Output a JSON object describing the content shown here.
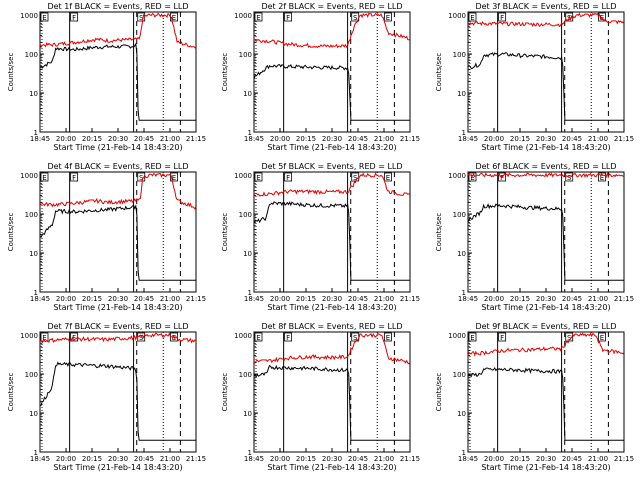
{
  "figure": {
    "xlabel": "Start Time (21-Feb-14 18:43:20)",
    "ylabel": "Counts/sec",
    "x_ticks": [
      "18:45",
      "20:00",
      "20:15",
      "20:30",
      "20:45",
      "21:00",
      "21:15"
    ],
    "y_ticks": [
      "1",
      "10",
      "100",
      "1000"
    ],
    "colors": {
      "events": "#000000",
      "lld": "#e00000",
      "axes": "#000000",
      "background": "#ffffff"
    }
  },
  "chart_data": [
    {
      "type": "line",
      "title": "Det 1f BLACK = Events, RED = LLD",
      "xlabel": "Start Time (21-Feb-14 18:43:20)",
      "ylabel": "Counts/sec",
      "y_scale": "log",
      "ylim": [
        1,
        1200
      ],
      "segment_flags": {
        "E_1": "E",
        "F": "F",
        "S": "S",
        "E_2": "E"
      },
      "series": [
        {
          "name": "Events",
          "color": "#000000",
          "points": [
            [
              0.0,
              45
            ],
            [
              0.08,
              65
            ],
            [
              0.1,
              140
            ],
            [
              0.22,
              130
            ],
            [
              0.36,
              150
            ],
            [
              0.44,
              155
            ],
            [
              0.52,
              155
            ],
            [
              0.6,
              160
            ],
            [
              0.62,
              180
            ],
            [
              0.63,
              2
            ]
          ]
        },
        {
          "name": "LLD",
          "color": "#e00000",
          "points": [
            [
              0.0,
              170
            ],
            [
              0.1,
              175
            ],
            [
              0.22,
              200
            ],
            [
              0.36,
              240
            ],
            [
              0.44,
              220
            ],
            [
              0.52,
              230
            ],
            [
              0.6,
              235
            ],
            [
              0.64,
              240
            ],
            [
              0.66,
              900
            ],
            [
              0.7,
              1000
            ],
            [
              0.84,
              1000
            ],
            [
              0.88,
              200
            ],
            [
              1.0,
              150
            ]
          ]
        }
      ]
    },
    {
      "type": "line",
      "title": "Det 2f BLACK = Events, RED = LLD",
      "xlabel": "Start Time (21-Feb-14 18:43:20)",
      "ylabel": "Counts/sec",
      "y_scale": "log",
      "ylim": [
        1,
        1200
      ],
      "segment_flags": {
        "E_1": "E",
        "F": "F",
        "S": "S",
        "E_2": "E"
      },
      "series": [
        {
          "name": "Events",
          "color": "#000000",
          "points": [
            [
              0.0,
              25
            ],
            [
              0.08,
              45
            ],
            [
              0.1,
              50
            ],
            [
              0.22,
              48
            ],
            [
              0.36,
              46
            ],
            [
              0.44,
              45
            ],
            [
              0.52,
              45
            ],
            [
              0.6,
              44
            ],
            [
              0.61,
              30
            ],
            [
              0.62,
              2
            ]
          ]
        },
        {
          "name": "LLD",
          "color": "#e00000",
          "points": [
            [
              0.0,
              230
            ],
            [
              0.1,
              215
            ],
            [
              0.22,
              180
            ],
            [
              0.36,
              165
            ],
            [
              0.44,
              160
            ],
            [
              0.52,
              160
            ],
            [
              0.6,
              165
            ],
            [
              0.64,
              500
            ],
            [
              0.68,
              1000
            ],
            [
              0.82,
              1000
            ],
            [
              0.86,
              350
            ],
            [
              1.0,
              250
            ]
          ]
        }
      ]
    },
    {
      "type": "line",
      "title": "Det 3f BLACK = Events, RED = LLD",
      "xlabel": "Start Time (21-Feb-14 18:43:20)",
      "ylabel": "Counts/sec",
      "y_scale": "log",
      "ylim": [
        1,
        1200
      ],
      "segment_flags": {
        "E_1": "E",
        "F": "F",
        "S": "S",
        "E_2": "E"
      },
      "series": [
        {
          "name": "Events",
          "color": "#000000",
          "points": [
            [
              0.0,
              45
            ],
            [
              0.08,
              55
            ],
            [
              0.1,
              95
            ],
            [
              0.22,
              100
            ],
            [
              0.36,
              90
            ],
            [
              0.44,
              88
            ],
            [
              0.52,
              85
            ],
            [
              0.6,
              80
            ],
            [
              0.61,
              50
            ],
            [
              0.62,
              2
            ]
          ]
        },
        {
          "name": "LLD",
          "color": "#e00000",
          "points": [
            [
              0.0,
              620
            ],
            [
              0.1,
              610
            ],
            [
              0.22,
              600
            ],
            [
              0.36,
              590
            ],
            [
              0.44,
              580
            ],
            [
              0.52,
              580
            ],
            [
              0.6,
              570
            ],
            [
              0.64,
              800
            ],
            [
              0.7,
              1000
            ],
            [
              0.84,
              1000
            ],
            [
              0.88,
              700
            ],
            [
              1.0,
              650
            ]
          ]
        }
      ]
    },
    {
      "type": "line",
      "title": "Det 4f BLACK = Events, RED = LLD",
      "xlabel": "Start Time (21-Feb-14 18:43:20)",
      "ylabel": "Counts/sec",
      "y_scale": "log",
      "ylim": [
        1,
        1200
      ],
      "segment_flags": {
        "E_1": "E",
        "F": "F",
        "S": "S",
        "E_2": "E"
      },
      "series": [
        {
          "name": "Events",
          "color": "#000000",
          "points": [
            [
              0.0,
              25
            ],
            [
              0.08,
              55
            ],
            [
              0.1,
              120
            ],
            [
              0.22,
              115
            ],
            [
              0.36,
              125
            ],
            [
              0.44,
              130
            ],
            [
              0.52,
              140
            ],
            [
              0.6,
              150
            ],
            [
              0.62,
              170
            ],
            [
              0.63,
              2
            ]
          ]
        },
        {
          "name": "LLD",
          "color": "#e00000",
          "points": [
            [
              0.0,
              180
            ],
            [
              0.1,
              175
            ],
            [
              0.22,
              190
            ],
            [
              0.36,
              220
            ],
            [
              0.44,
              200
            ],
            [
              0.52,
              210
            ],
            [
              0.6,
              215
            ],
            [
              0.64,
              230
            ],
            [
              0.66,
              900
            ],
            [
              0.7,
              1000
            ],
            [
              0.84,
              1000
            ],
            [
              0.88,
              220
            ],
            [
              1.0,
              150
            ]
          ]
        }
      ]
    },
    {
      "type": "line",
      "title": "Det 5f BLACK = Events, RED = LLD",
      "xlabel": "Start Time (21-Feb-14 18:43:20)",
      "ylabel": "Counts/sec",
      "y_scale": "log",
      "ylim": [
        1,
        1200
      ],
      "segment_flags": {
        "E_1": "E",
        "F": "F",
        "S": "S",
        "E_2": "E"
      },
      "series": [
        {
          "name": "Events",
          "color": "#000000",
          "points": [
            [
              0.0,
              60
            ],
            [
              0.08,
              80
            ],
            [
              0.1,
              190
            ],
            [
              0.22,
              185
            ],
            [
              0.36,
              170
            ],
            [
              0.44,
              165
            ],
            [
              0.52,
              165
            ],
            [
              0.6,
              160
            ],
            [
              0.61,
              100
            ],
            [
              0.62,
              2
            ]
          ]
        },
        {
          "name": "LLD",
          "color": "#e00000",
          "points": [
            [
              0.0,
              320
            ],
            [
              0.1,
              330
            ],
            [
              0.22,
              380
            ],
            [
              0.36,
              380
            ],
            [
              0.44,
              370
            ],
            [
              0.52,
              370
            ],
            [
              0.6,
              375
            ],
            [
              0.64,
              600
            ],
            [
              0.68,
              1000
            ],
            [
              0.82,
              1000
            ],
            [
              0.86,
              380
            ],
            [
              1.0,
              300
            ]
          ]
        }
      ]
    },
    {
      "type": "line",
      "title": "Det 6f BLACK = Events, RED = LLD",
      "xlabel": "Start Time (21-Feb-14 18:43:20)",
      "ylabel": "Counts/sec",
      "y_scale": "log",
      "ylim": [
        1,
        1200
      ],
      "segment_flags": {
        "E_1": "E",
        "F": "F",
        "S": "S",
        "E_2": "E"
      },
      "series": [
        {
          "name": "Events",
          "color": "#000000",
          "points": [
            [
              0.0,
              70
            ],
            [
              0.08,
              110
            ],
            [
              0.1,
              160
            ],
            [
              0.22,
              165
            ],
            [
              0.36,
              150
            ],
            [
              0.44,
              145
            ],
            [
              0.52,
              140
            ],
            [
              0.6,
              135
            ],
            [
              0.61,
              90
            ],
            [
              0.62,
              2
            ]
          ]
        },
        {
          "name": "LLD",
          "color": "#e00000",
          "points": [
            [
              0.0,
              1000
            ],
            [
              0.1,
              1000
            ],
            [
              0.3,
              1000
            ],
            [
              0.5,
              1000
            ],
            [
              0.7,
              1000
            ],
            [
              0.84,
              1000
            ],
            [
              0.88,
              1000
            ],
            [
              1.0,
              1000
            ]
          ]
        }
      ]
    },
    {
      "type": "line",
      "title": "Det 7f BLACK = Events, RED = LLD",
      "xlabel": "Start Time (21-Feb-14 18:43:20)",
      "ylabel": "Counts/sec",
      "y_scale": "log",
      "ylim": [
        1,
        1200
      ],
      "segment_flags": {
        "E_1": "E",
        "F": "F",
        "S": "S",
        "E_2": "E"
      },
      "series": [
        {
          "name": "Events",
          "color": "#000000",
          "points": [
            [
              0.0,
              15
            ],
            [
              0.08,
              50
            ],
            [
              0.1,
              180
            ],
            [
              0.22,
              175
            ],
            [
              0.36,
              165
            ],
            [
              0.44,
              160
            ],
            [
              0.52,
              150
            ],
            [
              0.6,
              140
            ],
            [
              0.62,
              120
            ],
            [
              0.63,
              2
            ]
          ]
        },
        {
          "name": "LLD",
          "color": "#e00000",
          "points": [
            [
              0.0,
              700
            ],
            [
              0.1,
              750
            ],
            [
              0.22,
              800
            ],
            [
              0.36,
              780
            ],
            [
              0.44,
              770
            ],
            [
              0.52,
              820
            ],
            [
              0.6,
              850
            ],
            [
              0.64,
              900
            ],
            [
              0.7,
              1000
            ],
            [
              0.84,
              1000
            ],
            [
              0.88,
              800
            ],
            [
              1.0,
              700
            ]
          ]
        }
      ]
    },
    {
      "type": "line",
      "title": "Det 8f BLACK = Events, RED = LLD",
      "xlabel": "Start Time (21-Feb-14 18:43:20)",
      "ylabel": "Counts/sec",
      "y_scale": "log",
      "ylim": [
        1,
        1200
      ],
      "segment_flags": {
        "E_1": "E",
        "F": "F",
        "S": "S",
        "E_2": "E"
      },
      "series": [
        {
          "name": "Events",
          "color": "#000000",
          "points": [
            [
              0.0,
              90
            ],
            [
              0.08,
              100
            ],
            [
              0.1,
              150
            ],
            [
              0.22,
              145
            ],
            [
              0.36,
              140
            ],
            [
              0.44,
              135
            ],
            [
              0.52,
              130
            ],
            [
              0.6,
              125
            ],
            [
              0.61,
              90
            ],
            [
              0.62,
              2
            ]
          ]
        },
        {
          "name": "LLD",
          "color": "#e00000",
          "points": [
            [
              0.0,
              210
            ],
            [
              0.1,
              220
            ],
            [
              0.22,
              260
            ],
            [
              0.36,
              280
            ],
            [
              0.44,
              270
            ],
            [
              0.52,
              270
            ],
            [
              0.6,
              275
            ],
            [
              0.64,
              600
            ],
            [
              0.68,
              1000
            ],
            [
              0.82,
              1000
            ],
            [
              0.86,
              260
            ],
            [
              1.0,
              200
            ]
          ]
        }
      ]
    },
    {
      "type": "line",
      "title": "Det 9f BLACK = Events, RED = LLD",
      "xlabel": "Start Time (21-Feb-14 18:43:20)",
      "ylabel": "Counts/sec",
      "y_scale": "log",
      "ylim": [
        1,
        1200
      ],
      "segment_flags": {
        "E_1": "E",
        "F": "F",
        "S": "S",
        "E_2": "E"
      },
      "series": [
        {
          "name": "Events",
          "color": "#000000",
          "points": [
            [
              0.0,
              90
            ],
            [
              0.08,
              100
            ],
            [
              0.1,
              130
            ],
            [
              0.22,
              130
            ],
            [
              0.36,
              125
            ],
            [
              0.44,
              120
            ],
            [
              0.52,
              120
            ],
            [
              0.6,
              115
            ],
            [
              0.61,
              80
            ],
            [
              0.62,
              2
            ]
          ]
        },
        {
          "name": "LLD",
          "color": "#e00000",
          "points": [
            [
              0.0,
              330
            ],
            [
              0.1,
              350
            ],
            [
              0.22,
              400
            ],
            [
              0.36,
              420
            ],
            [
              0.44,
              430
            ],
            [
              0.52,
              450
            ],
            [
              0.6,
              440
            ],
            [
              0.64,
              700
            ],
            [
              0.68,
              1000
            ],
            [
              0.82,
              1000
            ],
            [
              0.86,
              420
            ],
            [
              1.0,
              350
            ]
          ]
        }
      ]
    }
  ]
}
